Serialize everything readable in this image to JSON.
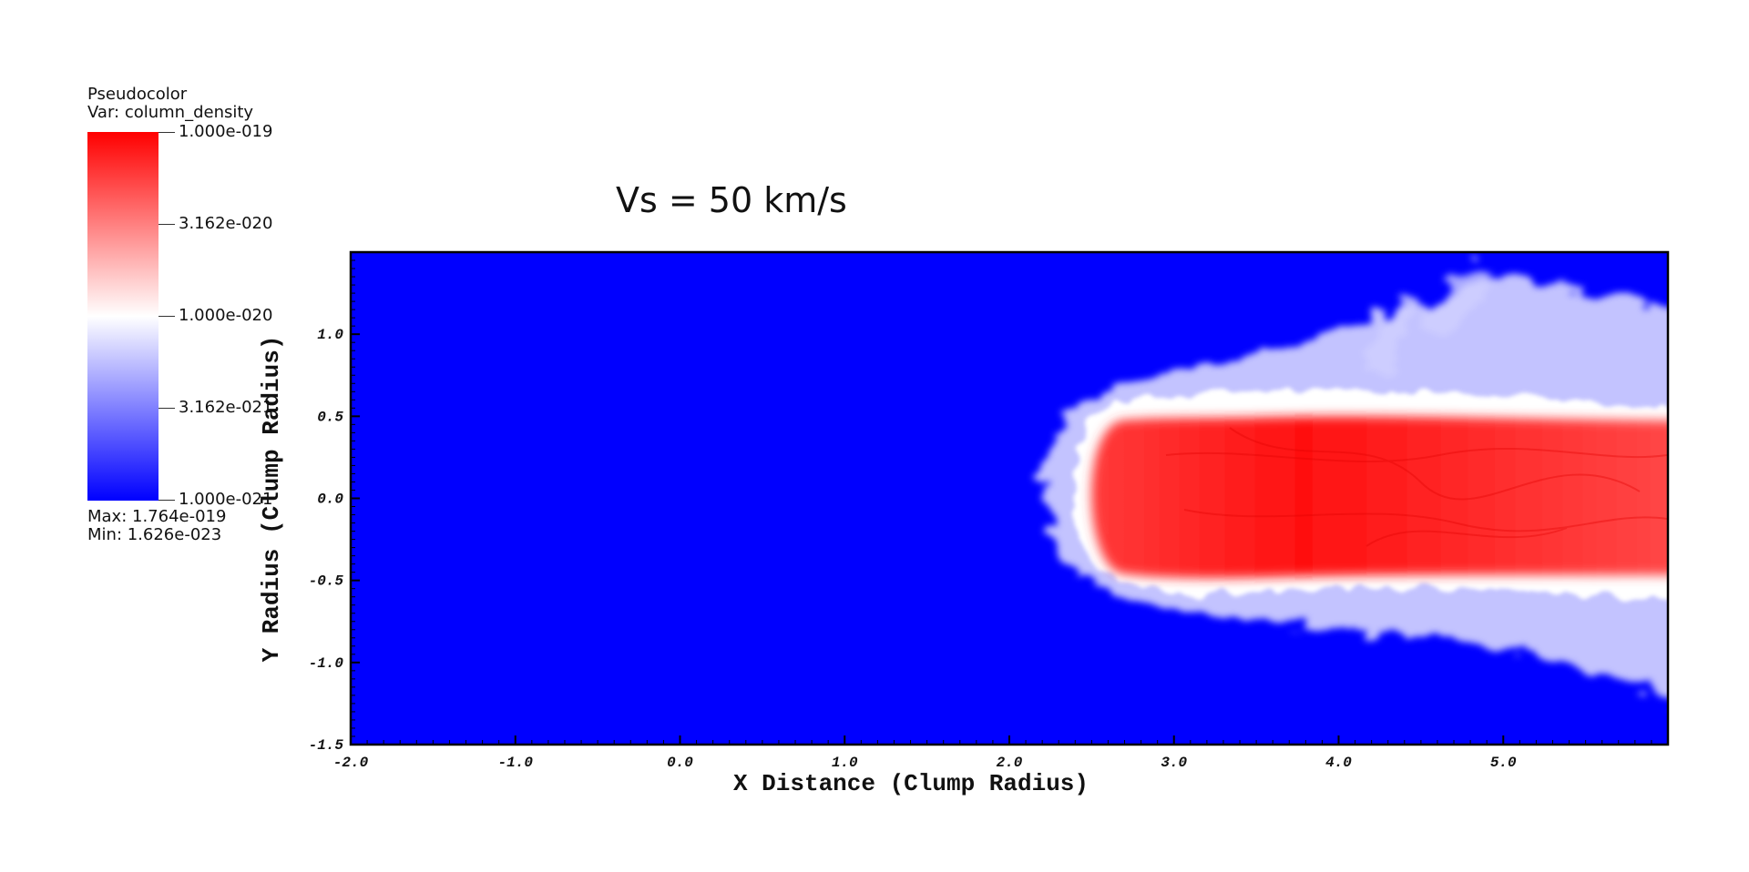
{
  "chart_data": {
    "type": "heatmap",
    "title": "Vs = 50 km/s",
    "xlabel": "X Distance (Clump Radius)",
    "ylabel": "Y Radius (Clump Radius)",
    "xlim": [
      -2.0,
      6.0
    ],
    "ylim": [
      -1.5,
      1.5
    ],
    "x_ticks": [
      "-2.0",
      "-1.0",
      "0.0",
      "1.0",
      "2.0",
      "3.0",
      "4.0",
      "5.0"
    ],
    "y_ticks": [
      "1.0",
      "0.5",
      "0.0",
      "-0.5",
      "-1.0",
      "-1.5"
    ],
    "legend": {
      "plot_type": "Pseudocolor",
      "var_label": "Var: column_density",
      "tick_labels": [
        "1.000e-019",
        "3.162e-020",
        "1.000e-020",
        "3.162e-021",
        "1.000e-021"
      ],
      "max_label": "Max:  1.764e-019",
      "min_label": "Min:  1.626e-023",
      "scale": "log",
      "colors": {
        "high": "#ff0000",
        "mid": "#ffffff",
        "low": "#0000ff"
      }
    }
  }
}
